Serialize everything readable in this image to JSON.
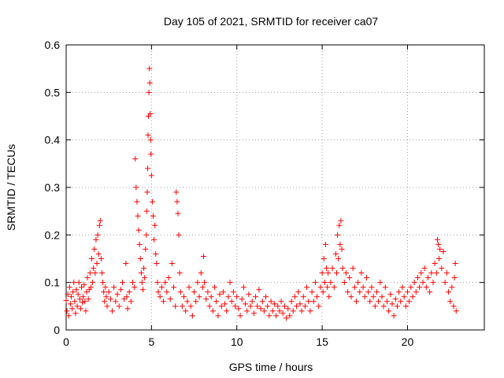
{
  "chart_data": {
    "type": "scatter",
    "title": "Day 105 of 2021, SRMTID for receiver ca07",
    "xlabel": "GPS time / hours",
    "ylabel": "SRMTID / TECUs",
    "xlim": [
      0,
      24.5
    ],
    "ylim": [
      0,
      0.6
    ],
    "xticks": [
      0,
      5,
      10,
      15,
      20
    ],
    "xtick_labels": [
      "0",
      "5",
      "10",
      "15",
      "20"
    ],
    "yticks": [
      0,
      0.1,
      0.2,
      0.3,
      0.4,
      0.5,
      0.6
    ],
    "ytick_labels": [
      "0",
      "0.1",
      "0.2",
      "0.3",
      "0.4",
      "0.5",
      "0.6"
    ],
    "grid": true,
    "marker": "+",
    "color": "#ff0000",
    "series": [
      {
        "name": "ca07",
        "points": [
          [
            0.0,
            0.062
          ],
          [
            0.05,
            0.04
          ],
          [
            0.1,
            0.075
          ],
          [
            0.15,
            0.03
          ],
          [
            0.2,
            0.09
          ],
          [
            0.25,
            0.055
          ],
          [
            0.3,
            0.07
          ],
          [
            0.35,
            0.045
          ],
          [
            0.4,
            0.08
          ],
          [
            0.45,
            0.1
          ],
          [
            0.5,
            0.06
          ],
          [
            0.55,
            0.035
          ],
          [
            0.6,
            0.085
          ],
          [
            0.65,
            0.05
          ],
          [
            0.7,
            0.075
          ],
          [
            0.75,
            0.1
          ],
          [
            0.8,
            0.065
          ],
          [
            0.85,
            0.045
          ],
          [
            0.9,
            0.09
          ],
          [
            0.95,
            0.058
          ],
          [
            1.0,
            0.07
          ],
          [
            1.05,
            0.095
          ],
          [
            1.1,
            0.06
          ],
          [
            1.15,
            0.04
          ],
          [
            1.2,
            0.08
          ],
          [
            1.25,
            0.11
          ],
          [
            1.3,
            0.065
          ],
          [
            1.35,
            0.085
          ],
          [
            1.4,
            0.12
          ],
          [
            1.45,
            0.09
          ],
          [
            1.5,
            0.15
          ],
          [
            1.55,
            0.1
          ],
          [
            1.6,
            0.13
          ],
          [
            1.65,
            0.17
          ],
          [
            1.7,
            0.12
          ],
          [
            1.75,
            0.19
          ],
          [
            1.8,
            0.14
          ],
          [
            1.85,
            0.2
          ],
          [
            1.9,
            0.16
          ],
          [
            1.95,
            0.22
          ],
          [
            2.0,
            0.23
          ],
          [
            2.05,
            0.15
          ],
          [
            2.1,
            0.12
          ],
          [
            2.15,
            0.1
          ],
          [
            2.2,
            0.08
          ],
          [
            2.25,
            0.06
          ],
          [
            2.3,
            0.09
          ],
          [
            2.35,
            0.07
          ],
          [
            2.4,
            0.05
          ],
          [
            2.5,
            0.08
          ],
          [
            2.6,
            0.065
          ],
          [
            2.7,
            0.04
          ],
          [
            2.8,
            0.09
          ],
          [
            2.9,
            0.06
          ],
          [
            3.0,
            0.075
          ],
          [
            3.1,
            0.05
          ],
          [
            3.2,
            0.085
          ],
          [
            3.3,
            0.1
          ],
          [
            3.4,
            0.065
          ],
          [
            3.5,
            0.14
          ],
          [
            3.55,
            0.07
          ],
          [
            3.6,
            0.045
          ],
          [
            3.7,
            0.08
          ],
          [
            3.8,
            0.06
          ],
          [
            3.9,
            0.1
          ],
          [
            4.0,
            0.09
          ],
          [
            4.05,
            0.36
          ],
          [
            4.1,
            0.3
          ],
          [
            4.15,
            0.27
          ],
          [
            4.2,
            0.24
          ],
          [
            4.25,
            0.21
          ],
          [
            4.3,
            0.18
          ],
          [
            4.35,
            0.15
          ],
          [
            4.4,
            0.12
          ],
          [
            4.45,
            0.1
          ],
          [
            4.5,
            0.085
          ],
          [
            4.55,
            0.13
          ],
          [
            4.6,
            0.11
          ],
          [
            4.65,
            0.17
          ],
          [
            4.7,
            0.2
          ],
          [
            4.72,
            0.25
          ],
          [
            4.75,
            0.29
          ],
          [
            4.78,
            0.34
          ],
          [
            4.8,
            0.41
          ],
          [
            4.82,
            0.45
          ],
          [
            4.85,
            0.5
          ],
          [
            4.88,
            0.55
          ],
          [
            4.9,
            0.52
          ],
          [
            4.92,
            0.455
          ],
          [
            4.95,
            0.4
          ],
          [
            4.97,
            0.37
          ],
          [
            5.0,
            0.325
          ],
          [
            5.05,
            0.27
          ],
          [
            5.1,
            0.24
          ],
          [
            5.15,
            0.19
          ],
          [
            5.2,
            0.22
          ],
          [
            5.25,
            0.16
          ],
          [
            5.3,
            0.14
          ],
          [
            5.35,
            0.1
          ],
          [
            5.4,
            0.08
          ],
          [
            5.5,
            0.07
          ],
          [
            5.6,
            0.09
          ],
          [
            5.7,
            0.06
          ],
          [
            5.8,
            0.1
          ],
          [
            5.9,
            0.08
          ],
          [
            6.0,
            0.11
          ],
          [
            6.1,
            0.065
          ],
          [
            6.2,
            0.14
          ],
          [
            6.3,
            0.09
          ],
          [
            6.4,
            0.05
          ],
          [
            6.45,
            0.29
          ],
          [
            6.5,
            0.27
          ],
          [
            6.55,
            0.245
          ],
          [
            6.6,
            0.2
          ],
          [
            6.65,
            0.12
          ],
          [
            6.7,
            0.08
          ],
          [
            6.8,
            0.05
          ],
          [
            6.9,
            0.07
          ],
          [
            7.0,
            0.04
          ],
          [
            7.1,
            0.06
          ],
          [
            7.2,
            0.09
          ],
          [
            7.3,
            0.05
          ],
          [
            7.4,
            0.03
          ],
          [
            7.5,
            0.08
          ],
          [
            7.6,
            0.06
          ],
          [
            7.7,
            0.1
          ],
          [
            7.8,
            0.07
          ],
          [
            7.9,
            0.12
          ],
          [
            8.0,
            0.09
          ],
          [
            8.05,
            0.155
          ],
          [
            8.1,
            0.1
          ],
          [
            8.2,
            0.065
          ],
          [
            8.3,
            0.08
          ],
          [
            8.4,
            0.05
          ],
          [
            8.5,
            0.07
          ],
          [
            8.6,
            0.04
          ],
          [
            8.7,
            0.09
          ],
          [
            8.8,
            0.06
          ],
          [
            8.9,
            0.03
          ],
          [
            9.0,
            0.075
          ],
          [
            9.1,
            0.05
          ],
          [
            9.2,
            0.08
          ],
          [
            9.3,
            0.055
          ],
          [
            9.4,
            0.04
          ],
          [
            9.5,
            0.07
          ],
          [
            9.6,
            0.1
          ],
          [
            9.7,
            0.06
          ],
          [
            9.8,
            0.08
          ],
          [
            9.9,
            0.05
          ],
          [
            10.0,
            0.07
          ],
          [
            10.1,
            0.045
          ],
          [
            10.2,
            0.03
          ],
          [
            10.3,
            0.065
          ],
          [
            10.4,
            0.09
          ],
          [
            10.5,
            0.055
          ],
          [
            10.6,
            0.04
          ],
          [
            10.7,
            0.075
          ],
          [
            10.8,
            0.05
          ],
          [
            10.9,
            0.06
          ],
          [
            11.0,
            0.035
          ],
          [
            11.1,
            0.07
          ],
          [
            11.2,
            0.05
          ],
          [
            11.3,
            0.085
          ],
          [
            11.4,
            0.045
          ],
          [
            11.5,
            0.06
          ],
          [
            11.6,
            0.04
          ],
          [
            11.7,
            0.07
          ],
          [
            11.8,
            0.05
          ],
          [
            11.9,
            0.03
          ],
          [
            12.0,
            0.06
          ],
          [
            12.1,
            0.04
          ],
          [
            12.2,
            0.055
          ],
          [
            12.3,
            0.03
          ],
          [
            12.4,
            0.05
          ],
          [
            12.5,
            0.04
          ],
          [
            12.6,
            0.06
          ],
          [
            12.7,
            0.035
          ],
          [
            12.8,
            0.05
          ],
          [
            12.9,
            0.025
          ],
          [
            13.0,
            0.045
          ],
          [
            13.1,
            0.03
          ],
          [
            13.2,
            0.06
          ],
          [
            13.3,
            0.04
          ],
          [
            13.4,
            0.07
          ],
          [
            13.5,
            0.05
          ],
          [
            13.6,
            0.08
          ],
          [
            13.7,
            0.055
          ],
          [
            13.8,
            0.04
          ],
          [
            13.9,
            0.07
          ],
          [
            14.0,
            0.05
          ],
          [
            14.1,
            0.09
          ],
          [
            14.2,
            0.06
          ],
          [
            14.3,
            0.04
          ],
          [
            14.4,
            0.08
          ],
          [
            14.5,
            0.06
          ],
          [
            14.6,
            0.1
          ],
          [
            14.7,
            0.07
          ],
          [
            14.8,
            0.05
          ],
          [
            14.9,
            0.09
          ],
          [
            15.0,
            0.12
          ],
          [
            15.05,
            0.08
          ],
          [
            15.1,
            0.15
          ],
          [
            15.15,
            0.1
          ],
          [
            15.2,
            0.18
          ],
          [
            15.25,
            0.13
          ],
          [
            15.3,
            0.09
          ],
          [
            15.35,
            0.12
          ],
          [
            15.4,
            0.07
          ],
          [
            15.5,
            0.1
          ],
          [
            15.6,
            0.13
          ],
          [
            15.7,
            0.09
          ],
          [
            15.8,
            0.16
          ],
          [
            15.85,
            0.12
          ],
          [
            15.9,
            0.2
          ],
          [
            15.95,
            0.15
          ],
          [
            16.0,
            0.22
          ],
          [
            16.05,
            0.18
          ],
          [
            16.1,
            0.23
          ],
          [
            16.15,
            0.17
          ],
          [
            16.2,
            0.13
          ],
          [
            16.3,
            0.1
          ],
          [
            16.4,
            0.12
          ],
          [
            16.5,
            0.08
          ],
          [
            16.6,
            0.11
          ],
          [
            16.7,
            0.07
          ],
          [
            16.8,
            0.13
          ],
          [
            16.9,
            0.09
          ],
          [
            17.0,
            0.06
          ],
          [
            17.1,
            0.1
          ],
          [
            17.2,
            0.08
          ],
          [
            17.3,
            0.12
          ],
          [
            17.4,
            0.09
          ],
          [
            17.5,
            0.07
          ],
          [
            17.6,
            0.11
          ],
          [
            17.7,
            0.08
          ],
          [
            17.8,
            0.06
          ],
          [
            17.9,
            0.09
          ],
          [
            18.0,
            0.07
          ],
          [
            18.1,
            0.05
          ],
          [
            18.2,
            0.08
          ],
          [
            18.3,
            0.06
          ],
          [
            18.4,
            0.1
          ],
          [
            18.5,
            0.07
          ],
          [
            18.6,
            0.05
          ],
          [
            18.7,
            0.09
          ],
          [
            18.8,
            0.06
          ],
          [
            18.9,
            0.04
          ],
          [
            19.0,
            0.075
          ],
          [
            19.1,
            0.055
          ],
          [
            19.2,
            0.03
          ],
          [
            19.3,
            0.065
          ],
          [
            19.4,
            0.05
          ],
          [
            19.5,
            0.08
          ],
          [
            19.6,
            0.06
          ],
          [
            19.7,
            0.09
          ],
          [
            19.8,
            0.07
          ],
          [
            19.9,
            0.05
          ],
          [
            20.0,
            0.08
          ],
          [
            20.1,
            0.06
          ],
          [
            20.2,
            0.09
          ],
          [
            20.3,
            0.07
          ],
          [
            20.4,
            0.1
          ],
          [
            20.5,
            0.08
          ],
          [
            20.6,
            0.11
          ],
          [
            20.7,
            0.09
          ],
          [
            20.8,
            0.12
          ],
          [
            20.9,
            0.1
          ],
          [
            21.0,
            0.13
          ],
          [
            21.1,
            0.09
          ],
          [
            21.2,
            0.11
          ],
          [
            21.3,
            0.08
          ],
          [
            21.4,
            0.12
          ],
          [
            21.5,
            0.1
          ],
          [
            21.6,
            0.14
          ],
          [
            21.7,
            0.12
          ],
          [
            21.75,
            0.19
          ],
          [
            21.8,
            0.18
          ],
          [
            21.85,
            0.15
          ],
          [
            21.9,
            0.17
          ],
          [
            22.0,
            0.13
          ],
          [
            22.1,
            0.165
          ],
          [
            22.2,
            0.1
          ],
          [
            22.3,
            0.12
          ],
          [
            22.4,
            0.08
          ],
          [
            22.5,
            0.06
          ],
          [
            22.6,
            0.09
          ],
          [
            22.7,
            0.05
          ],
          [
            22.75,
            0.11
          ],
          [
            22.8,
            0.14
          ],
          [
            22.85,
            0.04
          ]
        ]
      }
    ]
  }
}
